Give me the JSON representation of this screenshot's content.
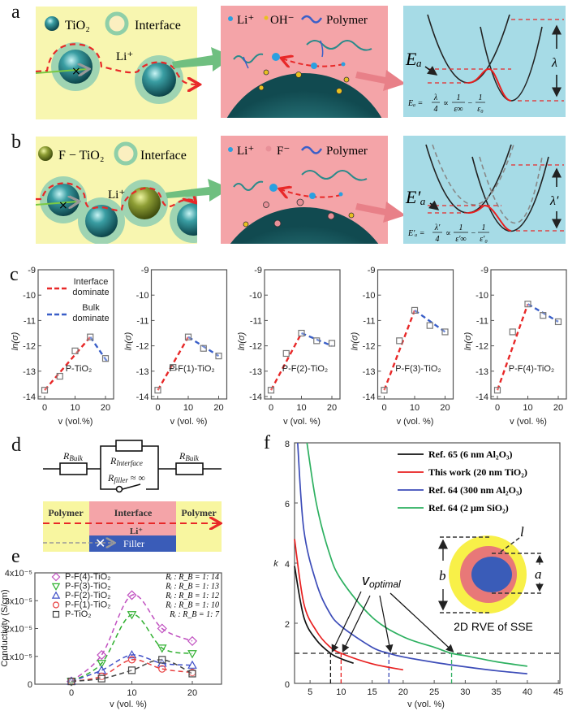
{
  "panel_labels": {
    "a": "a",
    "b": "b",
    "c": "c",
    "d": "d",
    "e": "e",
    "f": "f"
  },
  "colors": {
    "interface_fit": "#e82828",
    "bulk_fit": "#3a5fc8",
    "yellow_bg": "#f8f6b0",
    "pink_bg": "#f4a4a8",
    "teal_bg": "#a6dbe6",
    "tio2": "#2a8f95",
    "f_tio2": "#8a9a30"
  },
  "panel_a": {
    "legend_tio2": "TiO₂",
    "legend_interface": "Interface",
    "path_label": "Li⁺",
    "legend_li": "Li⁺",
    "legend_anion": "OH⁻",
    "legend_polymer": "Polymer",
    "energy_label": "Eₐ",
    "reorg_label": "λ",
    "formula": {
      "lhs": "Eₐ =",
      "num1": "λ",
      "den1": "4",
      "prop": "∝",
      "num2": "1",
      "den2": "ε∞",
      "minus": "−",
      "num3": "1",
      "den3": "ε₀"
    }
  },
  "panel_b": {
    "legend_ftio2": "F − TiO₂",
    "legend_interface": "Interface",
    "path_label": "Li⁺",
    "legend_li": "Li⁺",
    "legend_anion": "F⁻",
    "legend_polymer": "Polymer",
    "energy_label": "E′ₐ",
    "reorg_label": "λ′",
    "formula": {
      "lhs": "E′ₐ =",
      "num1": "λ′",
      "den1": "4",
      "prop": "∝",
      "num2": "1",
      "den2": "ε′∞",
      "minus": "−",
      "num3": "1",
      "den3": "ε′₀"
    }
  },
  "panel_d": {
    "r_bulk_left": {
      "main": "R",
      "sub": "Bulk"
    },
    "r_bulk_right": {
      "main": "R",
      "sub": "Bulk"
    },
    "r_interface": {
      "main": "R",
      "sub": "Interface"
    },
    "r_filler": {
      "main": "R",
      "sub": "filler",
      "suffix": " ≈ ∞"
    },
    "polymer_left": "Polymer",
    "interface": "Interface",
    "polymer_right": "Polymer",
    "li_label": "Li⁺",
    "filler": "Filler"
  },
  "chart_data": [
    {
      "type": "scatter",
      "panel": "c",
      "title": "P-TiO₂",
      "xlabel": "v (vol.%)",
      "ylabel": "ln(σ)",
      "xticks": [
        0,
        10,
        20
      ],
      "yticks": [
        -14,
        -13,
        -12,
        -11,
        -10,
        -9
      ],
      "ylim": [
        -14,
        -9
      ],
      "x": [
        0,
        5,
        10,
        15,
        20
      ],
      "y": [
        -13.75,
        -13.2,
        -12.2,
        -11.65,
        -12.5
      ],
      "legend": [
        {
          "lines": [
            "Interface",
            "dominate"
          ],
          "color": "#e82828"
        },
        {
          "lines": [
            "Bulk",
            "dominate"
          ],
          "color": "#3a5fc8"
        }
      ],
      "fits": [
        {
          "color": "#e82828",
          "points": [
            [
              0,
              -13.75
            ],
            [
              15,
              -11.65
            ]
          ]
        },
        {
          "color": "#3a5fc8",
          "points": [
            [
              15,
              -11.65
            ],
            [
              21,
              -12.7
            ]
          ]
        }
      ]
    },
    {
      "type": "scatter",
      "panel": "c",
      "title": "P-F(1)-TiO₂",
      "xlabel": "v (vol. %)",
      "ylabel": "ln(σ)",
      "xticks": [
        0,
        10,
        20
      ],
      "yticks": [
        -14,
        -13,
        -12,
        -11,
        -10,
        -9
      ],
      "ylim": [
        -14,
        -9
      ],
      "x": [
        0,
        5,
        10,
        15,
        20
      ],
      "y": [
        -13.75,
        -12.85,
        -11.65,
        -12.1,
        -12.4
      ],
      "fits": [
        {
          "color": "#e82828",
          "points": [
            [
              0,
              -13.75
            ],
            [
              10,
              -11.65
            ]
          ]
        },
        {
          "color": "#3a5fc8",
          "points": [
            [
              10,
              -11.65
            ],
            [
              20,
              -12.4
            ]
          ]
        }
      ]
    },
    {
      "type": "scatter",
      "panel": "c",
      "title": "P-F(2)-TiO₂",
      "xlabel": "v (vol. %)",
      "ylabel": "ln(σ)",
      "xticks": [
        0,
        10,
        20
      ],
      "yticks": [
        -14,
        -13,
        -12,
        -11,
        -10,
        -9
      ],
      "ylim": [
        -14,
        -9
      ],
      "x": [
        0,
        5,
        10,
        15,
        20
      ],
      "y": [
        -13.75,
        -12.3,
        -11.5,
        -11.8,
        -11.9
      ],
      "fits": [
        {
          "color": "#e82828",
          "points": [
            [
              0,
              -13.75
            ],
            [
              10,
              -11.5
            ]
          ]
        },
        {
          "color": "#3a5fc8",
          "points": [
            [
              10,
              -11.5
            ],
            [
              20,
              -12.0
            ]
          ]
        }
      ]
    },
    {
      "type": "scatter",
      "panel": "c",
      "title": "P-F(3)-TiO₂",
      "xlabel": "v (vol. %)",
      "ylabel": "ln(σ)",
      "xticks": [
        0,
        10,
        20
      ],
      "yticks": [
        -14,
        -13,
        -12,
        -11,
        -10,
        -9
      ],
      "ylim": [
        -14,
        -9
      ],
      "x": [
        0,
        5,
        10,
        15,
        20
      ],
      "y": [
        -13.75,
        -11.8,
        -10.6,
        -11.2,
        -11.45
      ],
      "fits": [
        {
          "color": "#e82828",
          "points": [
            [
              0,
              -13.75
            ],
            [
              10,
              -10.6
            ]
          ]
        },
        {
          "color": "#3a5fc8",
          "points": [
            [
              10,
              -10.6
            ],
            [
              20,
              -11.45
            ]
          ]
        }
      ]
    },
    {
      "type": "scatter",
      "panel": "c",
      "title": "P-F(4)-TiO₂",
      "xlabel": "v (vol. %)",
      "ylabel": "ln(σ)",
      "xticks": [
        0,
        10,
        20
      ],
      "yticks": [
        -14,
        -13,
        -12,
        -11,
        -10,
        -9
      ],
      "ylim": [
        -14,
        -9
      ],
      "x": [
        0,
        5,
        10,
        15,
        20
      ],
      "y": [
        -13.75,
        -11.45,
        -10.35,
        -10.8,
        -11.05
      ],
      "fits": [
        {
          "color": "#e82828",
          "points": [
            [
              0,
              -13.75
            ],
            [
              10,
              -10.35
            ]
          ]
        },
        {
          "color": "#3a5fc8",
          "points": [
            [
              10,
              -10.35
            ],
            [
              20,
              -11.05
            ]
          ]
        }
      ]
    },
    {
      "type": "scatter",
      "panel": "e",
      "xlabel": "v (vol. %)",
      "ylabel": "Conductivity (S/cm)",
      "xticks": [
        0,
        10,
        20
      ],
      "ytick_labels": [
        "0",
        "1x10⁻⁵",
        "2x10⁻⁵",
        "3x10⁻⁵",
        "4x10⁻⁵"
      ],
      "ylim": [
        0,
        4e-05
      ],
      "x": [
        0,
        5,
        10,
        15,
        20
      ],
      "series": [
        {
          "name": "P-F(4)-TiO₂",
          "ratio": "Rᵢ : R_B = 1: 14",
          "marker": "diamond",
          "color": "#c050c0",
          "values": [
            1e-06,
            1.05e-05,
            3.2e-05,
            2e-05,
            1.55e-05
          ]
        },
        {
          "name": "P-F(3)-TiO₂",
          "ratio": "Rᵢ : R_B = 1: 13",
          "marker": "triangle-down",
          "color": "#30b030",
          "values": [
            1e-06,
            7.5e-06,
            2.5e-05,
            1.3e-05,
            1.1e-05
          ]
        },
        {
          "name": "P-F(2)-TiO₂",
          "ratio": "Rᵢ : R_B = 1: 12",
          "marker": "triangle-up",
          "color": "#4050c8",
          "values": [
            1e-06,
            5e-06,
            1.05e-05,
            7.5e-06,
            6.8e-06
          ]
        },
        {
          "name": "P-F(1)-TiO₂",
          "ratio": "Rᵢ : R_B = 1: 10",
          "marker": "circle",
          "color": "#e84040",
          "values": [
            1e-06,
            2.8e-06,
            8.8e-06,
            5.5e-06,
            4.2e-06
          ]
        },
        {
          "name": "P-TiO₂",
          "ratio": "Rᵢ : R_B = 1: 7",
          "marker": "square",
          "color": "#444444",
          "values": [
            1e-06,
            2e-06,
            5e-06,
            8.8e-06,
            3.8e-06
          ]
        }
      ]
    },
    {
      "type": "line",
      "panel": "f",
      "xlabel": "v (vol. %)",
      "ylabel": "k",
      "xlim": [
        2.5,
        45
      ],
      "ylim": [
        0,
        8
      ],
      "xticks": [
        5,
        10,
        15,
        20,
        25,
        30,
        35,
        40,
        45
      ],
      "yticks": [
        0,
        2,
        4,
        6,
        8
      ],
      "series": [
        {
          "name": "Ref. 65  (6 nm Al₂O₃)",
          "color": "#111111",
          "points": [
            [
              2.5,
              3.9
            ],
            [
              4,
              2.2
            ],
            [
              6,
              1.45
            ],
            [
              8.3,
              1.0
            ],
            [
              10,
              0.82
            ],
            [
              12,
              0.67
            ]
          ]
        },
        {
          "name": "This work  (20 nm TiO₂)",
          "color": "#e82020",
          "points": [
            [
              2.5,
              4.8
            ],
            [
              4,
              2.65
            ],
            [
              6,
              1.75
            ],
            [
              8,
              1.25
            ],
            [
              10,
              1.0
            ],
            [
              15,
              0.65
            ],
            [
              20,
              0.45
            ]
          ]
        },
        {
          "name": "Ref. 64  (300 nm Al₂O₃)",
          "color": "#3c4cb8",
          "points": [
            [
              3,
              8
            ],
            [
              4,
              5.1
            ],
            [
              6,
              3.35
            ],
            [
              8,
              2.4
            ],
            [
              10,
              1.9
            ],
            [
              15,
              1.2
            ],
            [
              17.7,
              1.0
            ],
            [
              20,
              0.88
            ],
            [
              25,
              0.7
            ],
            [
              30,
              0.55
            ],
            [
              35,
              0.42
            ],
            [
              40,
              0.32
            ]
          ]
        },
        {
          "name": "Ref. 64  (2 μm SiO₂)",
          "color": "#2db060",
          "points": [
            [
              4.5,
              8
            ],
            [
              6,
              6
            ],
            [
              8,
              4.4
            ],
            [
              10,
              3.45
            ],
            [
              15,
              2.2
            ],
            [
              20,
              1.55
            ],
            [
              25,
              1.2
            ],
            [
              27.8,
              1.0
            ],
            [
              30,
              0.92
            ],
            [
              35,
              0.72
            ],
            [
              40,
              0.57
            ]
          ]
        }
      ],
      "hline": 1,
      "vlines": [
        8.3,
        10,
        17.7,
        27.8
      ],
      "annotation": {
        "main": "v",
        "sub": "optimal"
      },
      "inset": {
        "caption": "2D RVE of SSE",
        "label_b": "b",
        "label_a": "a",
        "label_l": "l"
      },
      "legend": "top-right"
    }
  ]
}
